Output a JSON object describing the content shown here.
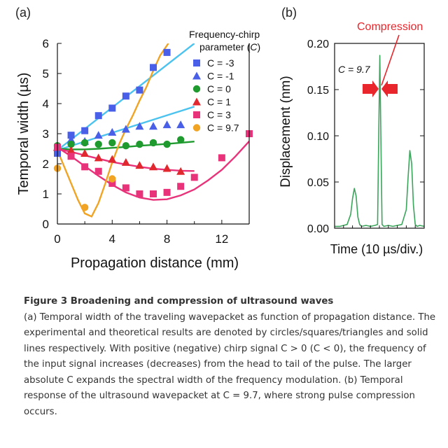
{
  "panel_a": {
    "label": "(a)",
    "legend_title_line1": "Frequency-chirp",
    "legend_title_line2": "parameter (",
    "legend_title_symbol": "C",
    "legend_title_close": ")"
  },
  "panel_b": {
    "label": "(b)",
    "compression_label": "Compression",
    "c_label": "C = 9.7"
  },
  "caption": {
    "title": "Figure 3 Broadening and compression of ultrasound waves",
    "body": "(a) Temporal width of the traveling wavepacket as function of propagation distance. The experimental and theoretical results are denoted by circles/squares/triangles and solid lines respectively. With positive (negative) chirp signal C > 0 (C < 0), the frequency of the input signal increases (decreases) from the head to tail of the pulse. The larger absolute C expands the spectral width of the frequency modulation. (b) Temporal response of the ultrasound wavepacket at C = 9.7, where strong pulse compression occurs."
  },
  "colors": {
    "blue_marker": "#4a5fe8",
    "blue_line": "#4cc3ef",
    "green": "#1f9a2e",
    "red": "#e0282e",
    "magenta": "#e8337a",
    "orange": "#f1a424",
    "trace_green": "#3aa55b",
    "arrow_red": "#e8262b"
  },
  "chart_data": [
    {
      "type": "scatter",
      "xlabel": "Propagation distance (mm)",
      "ylabel": "Temporal width (µs)",
      "xlim": [
        0,
        14
      ],
      "ylim": [
        0,
        6
      ],
      "xticks": [
        0,
        4,
        8,
        12
      ],
      "yticks": [
        0,
        1,
        2,
        3,
        4,
        5,
        6
      ],
      "legend_position": "top-right",
      "series": [
        {
          "name": "C = -3",
          "marker": "square",
          "color": "#4a5fe8",
          "line_color": "#4cc3ef",
          "x": [
            0,
            1,
            2,
            3,
            4,
            5,
            6,
            7,
            8
          ],
          "y": [
            2.35,
            2.95,
            3.1,
            3.6,
            3.85,
            4.25,
            4.45,
            5.2,
            5.7
          ],
          "fit_x": [
            0,
            10
          ],
          "fit_y": [
            2.45,
            6.0
          ]
        },
        {
          "name": "C = -1",
          "marker": "triangle",
          "color": "#4a5fe8",
          "line_color": "#4cc3ef",
          "x": [
            0,
            1,
            2,
            3,
            4,
            5,
            6,
            7,
            8,
            9
          ],
          "y": [
            2.55,
            2.8,
            2.75,
            2.95,
            3.05,
            3.15,
            3.25,
            3.25,
            3.3,
            3.3
          ],
          "fit_x": [
            0,
            10
          ],
          "fit_y": [
            2.45,
            3.9
          ]
        },
        {
          "name": "C = 0",
          "marker": "circle",
          "color": "#1f9a2e",
          "line_color": "#1f9a2e",
          "x": [
            0,
            1,
            2,
            3,
            4,
            5,
            6,
            7,
            8,
            9
          ],
          "y": [
            2.6,
            2.65,
            2.7,
            2.65,
            2.7,
            2.6,
            2.65,
            2.7,
            2.65,
            2.8
          ],
          "fit_x": [
            0,
            1,
            2,
            3,
            4,
            5,
            6,
            7,
            8,
            9,
            10
          ],
          "fit_y": [
            2.5,
            2.48,
            2.48,
            2.5,
            2.53,
            2.56,
            2.6,
            2.63,
            2.66,
            2.7,
            2.74
          ]
        },
        {
          "name": "C = 1",
          "marker": "triangle",
          "color": "#e0282e",
          "line_color": "#e8337a",
          "x": [
            0,
            1,
            2,
            3,
            4,
            5,
            6,
            7,
            8,
            9
          ],
          "y": [
            2.55,
            2.45,
            2.35,
            2.2,
            2.15,
            2.05,
            1.95,
            1.9,
            1.85,
            1.75
          ],
          "fit_x": [
            0,
            1,
            2,
            3,
            4,
            5,
            6,
            7,
            8,
            9,
            10
          ],
          "fit_y": [
            2.5,
            2.4,
            2.28,
            2.17,
            2.06,
            1.98,
            1.9,
            1.84,
            1.8,
            1.77,
            1.76
          ]
        },
        {
          "name": "C = 3",
          "marker": "square",
          "color": "#e8337a",
          "line_color": "#e8337a",
          "x": [
            0,
            1,
            2,
            3,
            4,
            5,
            6,
            7,
            8,
            9,
            10,
            12,
            14
          ],
          "y": [
            2.55,
            2.25,
            1.9,
            1.75,
            1.35,
            1.2,
            1.0,
            1.0,
            1.05,
            1.25,
            1.55,
            2.2,
            3.0
          ],
          "fit_x": [
            0,
            1,
            2,
            3,
            4,
            5,
            6,
            7,
            8,
            9,
            10,
            11,
            12,
            13,
            14
          ],
          "fit_y": [
            2.55,
            2.25,
            1.92,
            1.6,
            1.3,
            1.05,
            0.88,
            0.8,
            0.82,
            0.95,
            1.15,
            1.45,
            1.8,
            2.25,
            2.75
          ]
        },
        {
          "name": "C = 9.7",
          "marker": "circle",
          "color": "#f1a424",
          "line_color": "#f1a424",
          "x": [
            0,
            2,
            4
          ],
          "y": [
            1.85,
            0.55,
            1.5
          ],
          "fit_x": [
            0,
            0.5,
            1,
            1.5,
            2,
            2.5,
            3,
            3.5,
            4,
            4.5,
            5,
            5.5,
            6,
            6.5,
            7,
            7.5,
            8.1
          ],
          "fit_y": [
            2.45,
            1.9,
            1.35,
            0.8,
            0.35,
            0.25,
            0.7,
            1.35,
            2.05,
            2.65,
            3.15,
            3.6,
            4.1,
            4.55,
            5.1,
            5.6,
            6.0
          ]
        }
      ]
    },
    {
      "type": "line",
      "xlabel": "Time (10 µs/div.)",
      "ylabel": "Displacement (nm)",
      "xlim": [
        0,
        1
      ],
      "ylim": [
        0,
        0.2
      ],
      "yticks": [
        "0.00",
        "0.05",
        "0.10",
        "0.15",
        "0.20"
      ],
      "series": [
        {
          "name": "C = 9.7",
          "x": [
            0,
            0.06,
            0.1,
            0.14,
            0.18,
            0.2,
            0.22,
            0.24,
            0.26,
            0.28,
            0.3,
            0.35,
            0.4,
            0.45,
            0.48,
            0.495,
            0.505,
            0.515,
            0.53,
            0.55,
            0.6,
            0.65,
            0.7,
            0.75,
            0.8,
            0.82,
            0.84,
            0.86,
            0.88,
            0.9,
            0.92,
            0.95,
            1.0
          ],
          "y": [
            0.002,
            0.002,
            0.003,
            0.004,
            0.015,
            0.032,
            0.043,
            0.035,
            0.012,
            0.004,
            0.002,
            0.003,
            0.002,
            0.003,
            0.004,
            0.12,
            0.187,
            0.11,
            0.004,
            0.002,
            0.003,
            0.002,
            0.003,
            0.004,
            0.02,
            0.055,
            0.084,
            0.07,
            0.025,
            0.004,
            0.002,
            0.003,
            0.002
          ]
        }
      ]
    }
  ]
}
